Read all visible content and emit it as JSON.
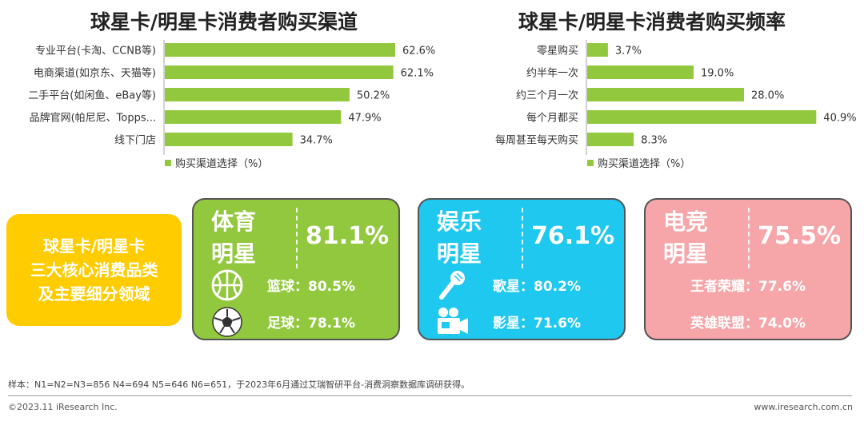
{
  "chart_data": [
    {
      "type": "bar",
      "orientation": "horizontal",
      "title": "球星卡/明星卡消费者购买渠道",
      "categories": [
        "专业平台(卡淘、CCNB等)",
        "电商渠道(如京东、天猫等)",
        "二手平台(如闲鱼、eBay等)",
        "品牌官网(帕尼尼、Topps...",
        "线下门店"
      ],
      "series": [
        {
          "name": "购买渠道选择（%）",
          "values": [
            62.6,
            62.1,
            50.2,
            47.9,
            34.7
          ]
        }
      ],
      "value_labels": [
        "62.6%",
        "62.1%",
        "50.2%",
        "47.9%",
        "34.7%"
      ],
      "xlim": [
        0,
        100
      ],
      "color": "#92c83e",
      "legend": "bottom-left",
      "grid": false
    },
    {
      "type": "bar",
      "orientation": "horizontal",
      "title": "球星卡/明星卡消费者购买频率",
      "categories": [
        "零星购买",
        "约半年一次",
        "约三个月一次",
        "每个月都买",
        "每周甚至每天购买"
      ],
      "series": [
        {
          "name": "购买渠道选择（%）",
          "values": [
            3.7,
            19.0,
            28.0,
            40.9,
            8.3
          ]
        }
      ],
      "value_labels": [
        "3.7%",
        "19.0%",
        "28.0%",
        "40.9%",
        "8.3%"
      ],
      "xlim": [
        0,
        50
      ],
      "color": "#92c83e",
      "legend": "bottom-left",
      "grid": false
    }
  ],
  "summary": {
    "lines": [
      "球星卡/明星卡",
      "三大核心消费品类",
      "及主要细分领域"
    ],
    "color": "#ffcc00"
  },
  "cards": {
    "sports": {
      "category": "体育明星",
      "percent": "81.1%",
      "color": "#92c83e",
      "items": [
        {
          "icon": "basketball-icon",
          "text": "篮球：80.5%"
        },
        {
          "icon": "soccer-ball-icon",
          "text": "足球：78.1%"
        }
      ]
    },
    "entertainment": {
      "category": "娱乐明星",
      "percent": "76.1%",
      "color": "#1ec8ef",
      "items": [
        {
          "icon": "microphone-icon",
          "text": "歌星：80.2%"
        },
        {
          "icon": "movie-camera-icon",
          "text": "影星：71.6%"
        }
      ]
    },
    "esports": {
      "category": "电竞明星",
      "percent": "75.5%",
      "color": "#f6a5a8",
      "items": [
        {
          "text": "王者荣耀：77.6%"
        },
        {
          "text": "英雄联盟：74.0%"
        }
      ]
    }
  },
  "note": "样本：N1=N2=N3=856 N4=694 N5=646 N6=651，于2023年6月通过艾瑞智研平台-消费洞察数据库调研获得。",
  "footer": {
    "copyright": "©2023.11 iResearch Inc.",
    "website": "www.iresearch.com.cn"
  }
}
